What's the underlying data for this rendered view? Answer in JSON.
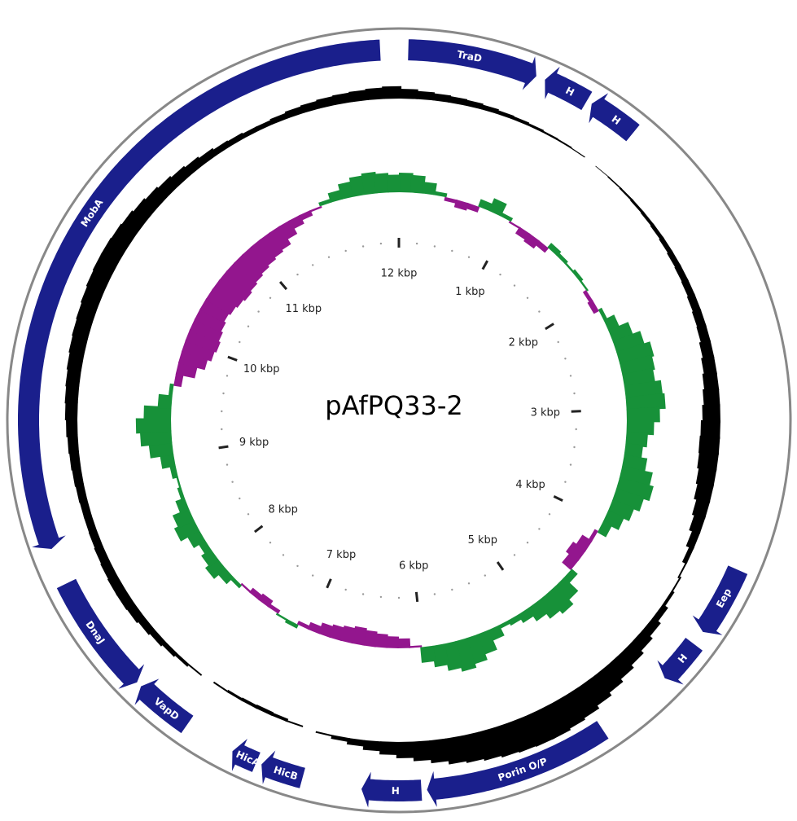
{
  "plasmid": {
    "name": "pAfPQ33-2",
    "length_kbp": 12.4
  },
  "colors": {
    "gene": "#1a1f8c",
    "backbone": "#888888",
    "gc_content": "#000000",
    "gc_skew_positive": "#179139",
    "gc_skew_negative": "#93168e",
    "tick": "#222222"
  },
  "genes": [
    {
      "label": "TraD",
      "start_kbp": 0.05,
      "end_kbp": 0.75,
      "strand": "+"
    },
    {
      "label": "H",
      "start_kbp": 1.05,
      "end_kbp": 0.8,
      "strand": "-"
    },
    {
      "label": "H",
      "start_kbp": 1.35,
      "end_kbp": 1.08,
      "strand": "-"
    },
    {
      "label": "Eep",
      "start_kbp": 3.92,
      "end_kbp": 4.3,
      "strand": "+"
    },
    {
      "label": "H",
      "start_kbp": 4.38,
      "end_kbp": 4.62,
      "strand": "+"
    },
    {
      "label": "Porin O/P",
      "start_kbp": 5.05,
      "end_kbp": 6.05,
      "strand": "-"
    },
    {
      "label": "H",
      "start_kbp": 6.08,
      "end_kbp": 6.4,
      "strand": "-"
    },
    {
      "label": "HicB",
      "start_kbp": 6.72,
      "end_kbp": 6.95,
      "strand": "+"
    },
    {
      "label": "HicA",
      "start_kbp": 6.98,
      "end_kbp": 7.12,
      "strand": "+"
    },
    {
      "label": "VapD",
      "start_kbp": 7.4,
      "end_kbp": 7.72,
      "strand": "+"
    },
    {
      "label": "DnaJ",
      "start_kbp": 8.4,
      "end_kbp": 7.75,
      "strand": "-"
    },
    {
      "label": "MobA",
      "start_kbp": 12.3,
      "end_kbp": 8.6,
      "strand": "-"
    }
  ],
  "scale_labels": [
    "12 kbp",
    "1 kbp",
    "2 kbp",
    "3 kbp",
    "4 kbp",
    "5 kbp",
    "6 kbp",
    "7 kbp",
    "8 kbp",
    "9 kbp",
    "10 kbp",
    "11 kbp"
  ],
  "gc_content_profile": [
    0.3,
    0.25,
    0.22,
    0.2,
    0.18,
    0.15,
    0.12,
    0.1,
    0.08,
    0.06,
    0.05,
    0.03,
    0.0,
    -0.02,
    -0.04,
    -0.06,
    -0.08,
    -0.1,
    -0.12,
    -0.15,
    -0.18,
    -0.2,
    -0.22,
    -0.25,
    -0.28,
    -0.3,
    -0.35,
    -0.4,
    -0.45,
    -0.5,
    -0.55,
    -0.6,
    -0.62,
    -0.6,
    -0.55,
    -0.5,
    -0.42,
    -0.35,
    -0.25,
    -0.15,
    -0.05,
    0.05,
    0.1,
    0.2,
    0.3,
    0.4,
    0.5,
    0.6,
    0.7,
    0.8,
    0.9,
    0.95,
    1.0,
    1.0,
    0.98,
    0.95,
    0.9,
    0.85,
    0.8,
    0.7,
    0.6,
    0.5,
    0.4,
    0.3,
    0.2,
    0.12,
    0.05,
    0.0,
    -0.05,
    -0.1,
    -0.12,
    -0.1,
    -0.08,
    -0.05,
    0.0,
    0.05,
    0.1,
    0.15,
    0.2,
    0.25,
    0.3,
    0.32,
    0.32,
    0.3,
    0.28,
    0.26,
    0.25,
    0.25,
    0.26,
    0.28,
    0.3,
    0.32,
    0.35,
    0.38,
    0.4,
    0.42,
    0.45,
    0.48,
    0.5,
    0.52,
    0.55,
    0.58,
    0.6,
    0.6,
    0.58,
    0.55,
    0.5,
    0.45,
    0.4,
    0.35,
    0.3,
    0.25,
    0.2,
    0.18,
    0.15,
    0.15,
    0.18,
    0.22,
    0.25,
    0.28,
    0.3,
    0.32,
    0.35,
    0.38
  ],
  "gc_skew_profile": [
    0.5,
    0.45,
    0.3,
    0.1,
    -0.1,
    -0.2,
    -0.15,
    0.2,
    0.35,
    0.1,
    -0.05,
    -0.2,
    -0.25,
    -0.15,
    0.15,
    0.1,
    0.05,
    0.1,
    0.05,
    -0.1,
    -0.15,
    0.1,
    0.3,
    0.55,
    0.75,
    0.9,
    0.85,
    0.8,
    0.95,
    1.0,
    0.85,
    0.7,
    0.55,
    0.45,
    0.6,
    0.8,
    0.9,
    0.75,
    0.6,
    0.45,
    0.25,
    -0.1,
    -0.3,
    -0.4,
    -0.3,
    0.2,
    0.5,
    0.65,
    0.55,
    0.4,
    0.25,
    0.15,
    0.1,
    0.3,
    0.55,
    0.7,
    0.8,
    0.7,
    0.55,
    0.4,
    -0.05,
    -0.25,
    -0.3,
    -0.35,
    -0.4,
    -0.45,
    -0.4,
    -0.35,
    -0.3,
    -0.2,
    -0.1,
    0.1,
    0.05,
    -0.1,
    -0.2,
    -0.15,
    -0.05,
    0.1,
    0.25,
    0.4,
    0.3,
    0.2,
    0.35,
    0.55,
    0.45,
    0.25,
    0.1,
    0.05,
    0.15,
    0.35,
    0.6,
    0.8,
    0.9,
    0.7,
    0.35,
    0.1,
    -0.2,
    -0.5,
    -0.7,
    -0.8,
    -0.85,
    -0.8,
    -0.75,
    -0.7,
    -0.75,
    -0.8,
    -0.85,
    -0.8,
    -0.75,
    -0.7,
    -0.65,
    -0.6,
    -0.55,
    -0.4,
    -0.25,
    -0.15,
    -0.05,
    0.1,
    0.25,
    0.4,
    0.5,
    0.55,
    0.5,
    0.45
  ]
}
